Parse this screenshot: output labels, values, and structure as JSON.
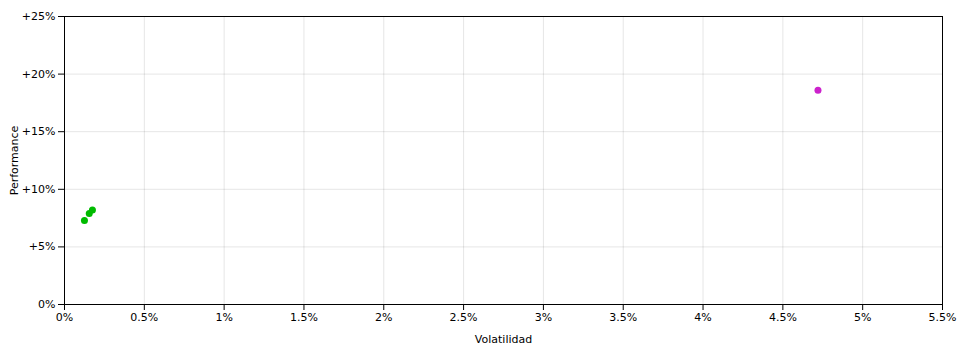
{
  "chart_data": {
    "type": "scatter",
    "xlabel": "Volatilidad",
    "ylabel": "Performance",
    "xlim": [
      0,
      0.055
    ],
    "ylim": [
      0,
      0.25
    ],
    "xticks": [
      {
        "value": 0.0,
        "label": "0%"
      },
      {
        "value": 0.005,
        "label": "0.5%"
      },
      {
        "value": 0.01,
        "label": "1%"
      },
      {
        "value": 0.015,
        "label": "1.5%"
      },
      {
        "value": 0.02,
        "label": "2%"
      },
      {
        "value": 0.025,
        "label": "2.5%"
      },
      {
        "value": 0.03,
        "label": "3%"
      },
      {
        "value": 0.035,
        "label": "3.5%"
      },
      {
        "value": 0.04,
        "label": "4%"
      },
      {
        "value": 0.045,
        "label": "4.5%"
      },
      {
        "value": 0.05,
        "label": "5%"
      },
      {
        "value": 0.055,
        "label": "5.5%"
      }
    ],
    "yticks": [
      {
        "value": 0.0,
        "label": "0%"
      },
      {
        "value": 0.05,
        "label": "+5%"
      },
      {
        "value": 0.1,
        "label": "+10%"
      },
      {
        "value": 0.15,
        "label": "+15%"
      },
      {
        "value": 0.2,
        "label": "+20%"
      },
      {
        "value": 0.25,
        "label": "+25%"
      }
    ],
    "grid": true,
    "series": [
      {
        "color": "#00bb00",
        "x": [
          0.00125,
          0.00155,
          0.00175
        ],
        "values": [
          0.073,
          0.079,
          0.082
        ]
      },
      {
        "color": "#cc22cc",
        "x": [
          0.0472
        ],
        "values": [
          0.186
        ]
      }
    ]
  }
}
